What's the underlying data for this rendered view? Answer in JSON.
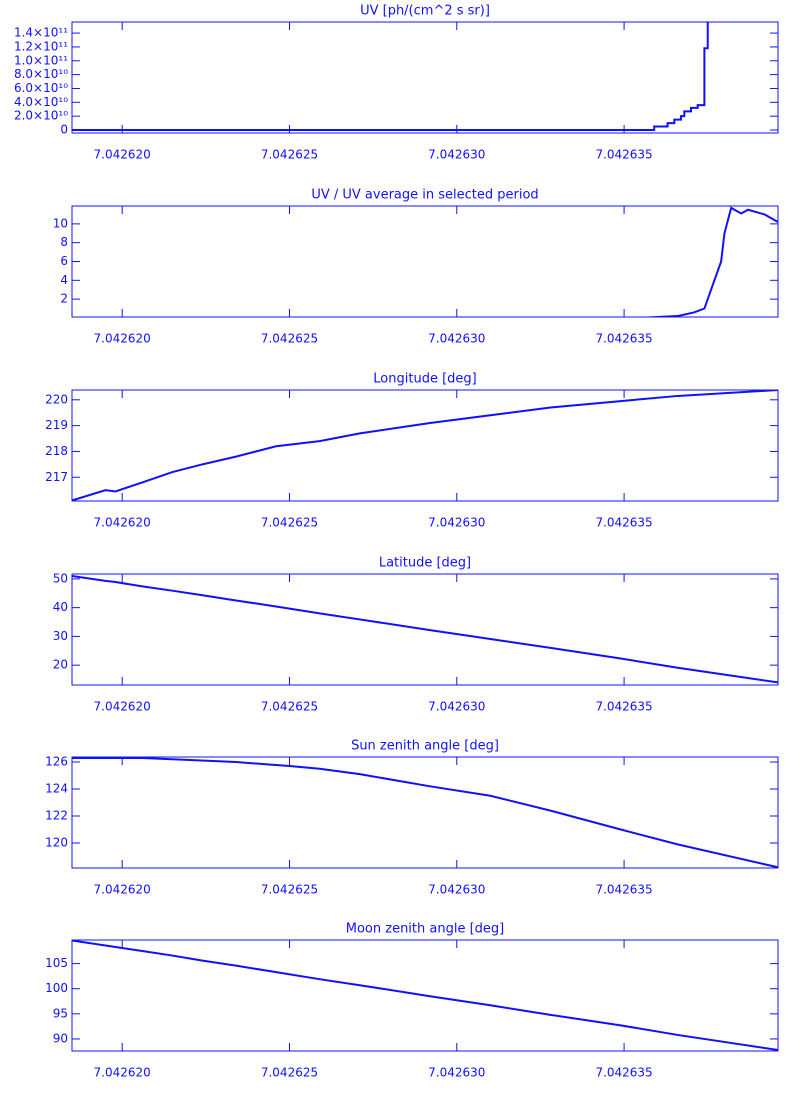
{
  "chart_data": [
    {
      "type": "line",
      "title": "UV [ph/(cm^2 s sr)]",
      "color": "#1010ff",
      "x": [
        7.0426185,
        7.0426359,
        7.0426359,
        7.0426363,
        7.0426363,
        7.0426365,
        7.0426365,
        7.0426367,
        7.0426367,
        7.0426368,
        7.0426368,
        7.042637,
        7.042637,
        7.0426372,
        7.0426372,
        7.0426374,
        7.0426374,
        7.0426375,
        7.0426375,
        7.0426376
      ],
      "values": [
        0,
        0,
        5000000000.0,
        5000000000.0,
        10000000000.0,
        10000000000.0,
        15000000000.0,
        15000000000.0,
        20000000000.0,
        20000000000.0,
        27000000000.0,
        27000000000.0,
        32000000000.0,
        32000000000.0,
        36000000000.0,
        36000000000.0,
        118000000000.0,
        118000000000.0,
        160000000000.0,
        160000000000.0
      ],
      "xlim": [
        7.0426185,
        7.0426396
      ],
      "ylim": [
        -4300000000.0,
        156000000000.0
      ],
      "xticks": [
        {
          "value": 7.04262,
          "label": "7.042620"
        },
        {
          "value": 7.042625,
          "label": "7.042625"
        },
        {
          "value": 7.04263,
          "label": "7.042630"
        },
        {
          "value": 7.042635,
          "label": "7.042635"
        }
      ],
      "yticks": [
        0,
        {
          "value": 20000000000.0,
          "label": "2.0×10¹⁰"
        },
        {
          "value": 40000000000.0,
          "label": "4.0×10¹⁰"
        },
        {
          "value": 60000000000.0,
          "label": "6.0×10¹⁰"
        },
        {
          "value": 80000000000.0,
          "label": "8.0×10¹⁰"
        },
        {
          "value": 100000000000.0,
          "label": "1.0×10¹¹"
        },
        {
          "value": 120000000000.0,
          "label": "1.2×10¹¹"
        },
        {
          "value": 140000000000.0,
          "label": "1.4×10¹¹"
        }
      ]
    },
    {
      "type": "line",
      "title": "UV / UV average in selected period",
      "color": "#1010ff",
      "x": [
        7.0426185,
        7.0426354,
        7.0426366,
        7.0426371,
        7.0426374,
        7.0426376,
        7.0426379,
        7.042638,
        7.0426382,
        7.0426385,
        7.0426387,
        7.0426392,
        7.0426396
      ],
      "values": [
        0,
        0,
        0.2,
        0.6,
        1.0,
        3,
        6,
        9,
        11.7,
        11.1,
        11.5,
        11,
        10.2
      ],
      "xlim": [
        7.0426185,
        7.0426396
      ],
      "ylim": [
        0.1,
        11.9
      ],
      "xticks": [
        {
          "value": 7.04262,
          "label": "7.042620"
        },
        {
          "value": 7.042625,
          "label": "7.042625"
        },
        {
          "value": 7.04263,
          "label": "7.042630"
        },
        {
          "value": 7.042635,
          "label": "7.042635"
        }
      ],
      "yticks": [
        2,
        4,
        6,
        8,
        10
      ]
    },
    {
      "type": "line",
      "title": "Longitude [deg]",
      "color": "#1010ff",
      "x": [
        7.0426185,
        7.0426195,
        7.0426198,
        7.0426206,
        7.0426215,
        7.0426224,
        7.0426234,
        7.0426246,
        7.0426259,
        7.0426271,
        7.0426292,
        7.042631,
        7.0426328,
        7.0426349,
        7.0426366,
        7.0426396
      ],
      "values": [
        216.1,
        216.5,
        216.45,
        216.8,
        217.2,
        217.5,
        217.8,
        218.2,
        218.4,
        218.7,
        219.1,
        219.4,
        219.7,
        219.95,
        220.15,
        220.38
      ],
      "xlim": [
        7.0426185,
        7.0426396
      ],
      "ylim": [
        216.08,
        220.38
      ],
      "xticks": [
        {
          "value": 7.04262,
          "label": "7.042620"
        },
        {
          "value": 7.042625,
          "label": "7.042625"
        },
        {
          "value": 7.04263,
          "label": "7.042630"
        },
        {
          "value": 7.042635,
          "label": "7.042635"
        }
      ],
      "yticks": [
        217,
        218,
        219,
        220
      ]
    },
    {
      "type": "line",
      "title": "Latitude [deg]",
      "color": "#1010ff",
      "x": [
        7.0426185,
        7.0426195,
        7.0426198,
        7.0426206,
        7.0426215,
        7.0426224,
        7.0426234,
        7.0426246,
        7.0426259,
        7.0426271,
        7.0426292,
        7.042631,
        7.0426328,
        7.0426349,
        7.0426366,
        7.0426396
      ],
      "values": [
        51,
        49.3,
        48.9,
        47.4,
        45.9,
        44.3,
        42.5,
        40.4,
        38.0,
        35.9,
        32.2,
        29.1,
        26.0,
        22.3,
        19.1,
        14.0
      ],
      "xlim": [
        7.0426185,
        7.0426396
      ],
      "ylim": [
        13.1,
        51.7
      ],
      "xticks": [
        {
          "value": 7.04262,
          "label": "7.042620"
        },
        {
          "value": 7.042625,
          "label": "7.042625"
        },
        {
          "value": 7.04263,
          "label": "7.042630"
        },
        {
          "value": 7.042635,
          "label": "7.042635"
        }
      ],
      "yticks": [
        20,
        30,
        40,
        50
      ]
    },
    {
      "type": "line",
      "title": "Sun zenith angle [deg]",
      "color": "#1010ff",
      "x": [
        7.0426185,
        7.0426206,
        7.0426215,
        7.0426234,
        7.042625,
        7.0426259,
        7.0426271,
        7.0426292,
        7.042631,
        7.0426328,
        7.0426349,
        7.0426366,
        7.0426396
      ],
      "values": [
        126.3,
        126.3,
        126.2,
        126.0,
        125.7,
        125.5,
        125.1,
        124.2,
        123.5,
        122.4,
        121.0,
        119.9,
        118.2
      ],
      "xlim": [
        7.0426185,
        7.0426396
      ],
      "ylim": [
        118.15,
        126.37
      ],
      "xticks": [
        {
          "value": 7.04262,
          "label": "7.042620"
        },
        {
          "value": 7.042625,
          "label": "7.042625"
        },
        {
          "value": 7.04263,
          "label": "7.042630"
        },
        {
          "value": 7.042635,
          "label": "7.042635"
        }
      ],
      "yticks": [
        120,
        122,
        124,
        126
      ]
    },
    {
      "type": "line",
      "title": "Moon zenith angle [deg]",
      "color": "#1010ff",
      "x": [
        7.0426185,
        7.0426195,
        7.0426198,
        7.0426206,
        7.0426215,
        7.0426224,
        7.0426234,
        7.0426246,
        7.0426259,
        7.0426271,
        7.0426292,
        7.042631,
        7.0426328,
        7.0426349,
        7.0426366,
        7.0426396
      ],
      "values": [
        109.6,
        108.6,
        108.3,
        107.5,
        106.6,
        105.6,
        104.6,
        103.3,
        101.9,
        100.7,
        98.5,
        96.7,
        94.8,
        92.7,
        90.8,
        87.8
      ],
      "xlim": [
        7.0426185,
        7.0426396
      ],
      "ylim": [
        87.6,
        109.7
      ],
      "xticks": [
        {
          "value": 7.04262,
          "label": "7.042620"
        },
        {
          "value": 7.042625,
          "label": "7.042625"
        },
        {
          "value": 7.04263,
          "label": "7.042630"
        },
        {
          "value": 7.042635,
          "label": "7.042635"
        }
      ],
      "yticks": [
        90,
        95,
        100,
        105
      ]
    }
  ]
}
